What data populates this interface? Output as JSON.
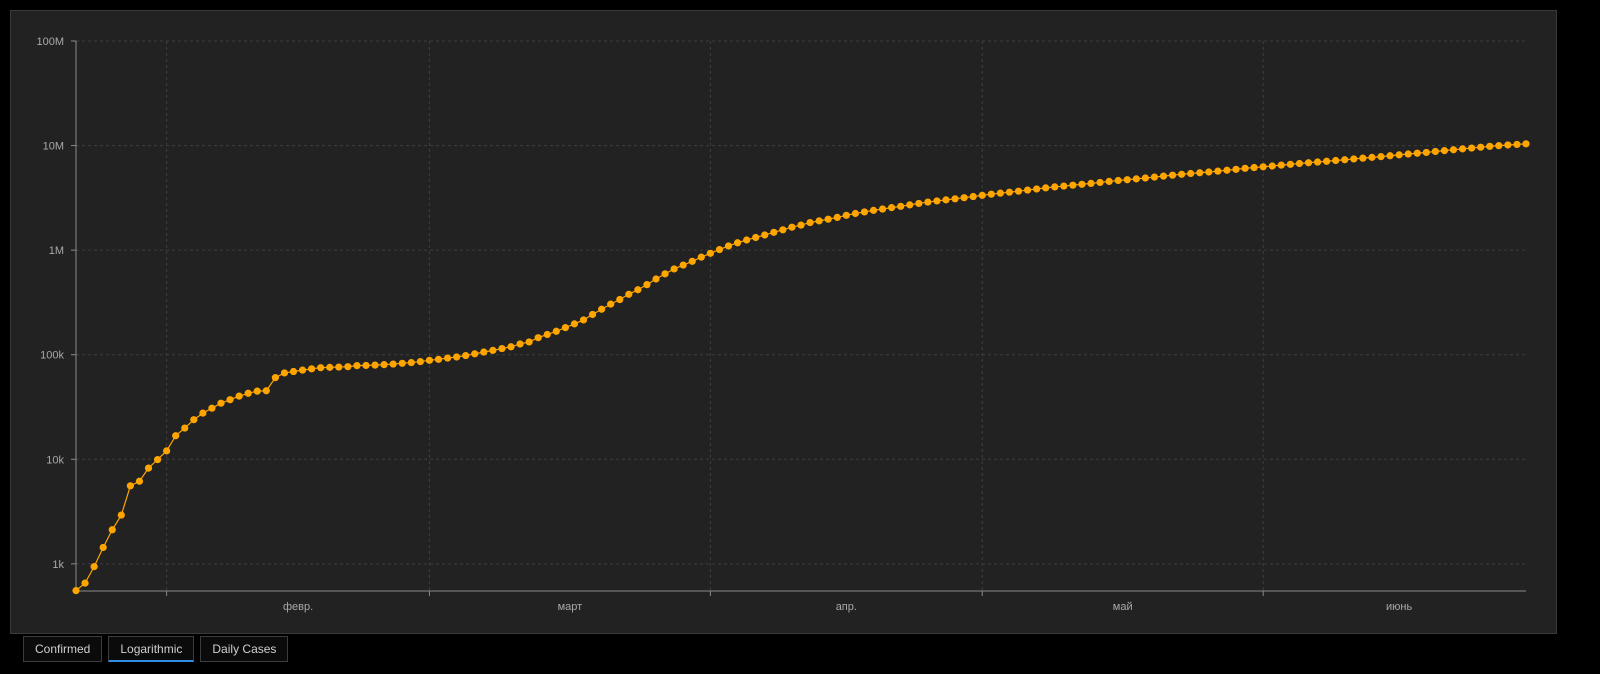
{
  "tabs": [
    {
      "label": "Confirmed",
      "active": false
    },
    {
      "label": "Logarithmic",
      "active": true
    },
    {
      "label": "Daily Cases",
      "active": false
    }
  ],
  "colors": {
    "background": "#000000",
    "panel": "#222222",
    "series": "#ffa500",
    "grid": "#3e3e3e",
    "axis": "#8a8a8a",
    "tab_active_underline": "#2f8fe0"
  },
  "chart_data": {
    "type": "line",
    "title": "",
    "xlabel": "",
    "ylabel": "",
    "y_scale": "log",
    "ylim": [
      550,
      100000000
    ],
    "y_ticks": [
      {
        "value": 1000,
        "label": "1k"
      },
      {
        "value": 10000,
        "label": "10k"
      },
      {
        "value": 100000,
        "label": "100k"
      },
      {
        "value": 1000000,
        "label": "1M"
      },
      {
        "value": 10000000,
        "label": "10M"
      },
      {
        "value": 100000000,
        "label": "100M"
      }
    ],
    "xlim": [
      "2020-01-22",
      "2020-06-30"
    ],
    "x_ticks": [
      {
        "value": "2020-02-01",
        "label": "февр."
      },
      {
        "value": "2020-03-01",
        "label": "март"
      },
      {
        "value": "2020-04-01",
        "label": "апр."
      },
      {
        "value": "2020-05-01",
        "label": "май"
      },
      {
        "value": "2020-06-01",
        "label": "июнь"
      }
    ],
    "x_major_lines": [
      "2020-02-01",
      "2020-03-01",
      "2020-04-01",
      "2020-05-01",
      "2020-06-01"
    ],
    "grid": true,
    "legend": "none",
    "series": [
      {
        "x": [
          "2020-01-22",
          "2020-01-23",
          "2020-01-24",
          "2020-01-25",
          "2020-01-26",
          "2020-01-27",
          "2020-01-28",
          "2020-01-29",
          "2020-01-30",
          "2020-01-31",
          "2020-02-01",
          "2020-02-02",
          "2020-02-03",
          "2020-02-04",
          "2020-02-05",
          "2020-02-06",
          "2020-02-07",
          "2020-02-08",
          "2020-02-09",
          "2020-02-10",
          "2020-02-11",
          "2020-02-12",
          "2020-02-13",
          "2020-02-14",
          "2020-02-15",
          "2020-02-16",
          "2020-02-17",
          "2020-02-18",
          "2020-02-19",
          "2020-02-20",
          "2020-02-21",
          "2020-02-22",
          "2020-02-23",
          "2020-02-24",
          "2020-02-25",
          "2020-02-26",
          "2020-02-27",
          "2020-02-28",
          "2020-02-29",
          "2020-03-01",
          "2020-03-02",
          "2020-03-03",
          "2020-03-04",
          "2020-03-05",
          "2020-03-06",
          "2020-03-07",
          "2020-03-08",
          "2020-03-09",
          "2020-03-10",
          "2020-03-11",
          "2020-03-12",
          "2020-03-13",
          "2020-03-14",
          "2020-03-15",
          "2020-03-16",
          "2020-03-17",
          "2020-03-18",
          "2020-03-19",
          "2020-03-20",
          "2020-03-21",
          "2020-03-22",
          "2020-03-23",
          "2020-03-24",
          "2020-03-25",
          "2020-03-26",
          "2020-03-27",
          "2020-03-28",
          "2020-03-29",
          "2020-03-30",
          "2020-03-31",
          "2020-04-01",
          "2020-04-02",
          "2020-04-03",
          "2020-04-04",
          "2020-04-05",
          "2020-04-06",
          "2020-04-07",
          "2020-04-08",
          "2020-04-09",
          "2020-04-10",
          "2020-04-11",
          "2020-04-12",
          "2020-04-13",
          "2020-04-14",
          "2020-04-15",
          "2020-04-16",
          "2020-04-17",
          "2020-04-18",
          "2020-04-19",
          "2020-04-20",
          "2020-04-21",
          "2020-04-22",
          "2020-04-23",
          "2020-04-24",
          "2020-04-25",
          "2020-04-26",
          "2020-04-27",
          "2020-04-28",
          "2020-04-29",
          "2020-04-30",
          "2020-05-01",
          "2020-05-02",
          "2020-05-03",
          "2020-05-04",
          "2020-05-05",
          "2020-05-06",
          "2020-05-07",
          "2020-05-08",
          "2020-05-09",
          "2020-05-10",
          "2020-05-11",
          "2020-05-12",
          "2020-05-13",
          "2020-05-14",
          "2020-05-15",
          "2020-05-16",
          "2020-05-17",
          "2020-05-18",
          "2020-05-19",
          "2020-05-20",
          "2020-05-21",
          "2020-05-22",
          "2020-05-23",
          "2020-05-24",
          "2020-05-25",
          "2020-05-26",
          "2020-05-27",
          "2020-05-28",
          "2020-05-29",
          "2020-05-30",
          "2020-05-31",
          "2020-06-01",
          "2020-06-02",
          "2020-06-03",
          "2020-06-04",
          "2020-06-05",
          "2020-06-06",
          "2020-06-07",
          "2020-06-08",
          "2020-06-09",
          "2020-06-10",
          "2020-06-11",
          "2020-06-12",
          "2020-06-13",
          "2020-06-14",
          "2020-06-15",
          "2020-06-16",
          "2020-06-17",
          "2020-06-18",
          "2020-06-19",
          "2020-06-20",
          "2020-06-21",
          "2020-06-22",
          "2020-06-23",
          "2020-06-24",
          "2020-06-25",
          "2020-06-26",
          "2020-06-27",
          "2020-06-28",
          "2020-06-29",
          "2020-06-30"
        ],
        "values": [
          555,
          654,
          941,
          1434,
          2118,
          2927,
          5578,
          6166,
          8234,
          9927,
          12038,
          16787,
          19887,
          23898,
          27643,
          30802,
          34395,
          37129,
          40160,
          42768,
          44811,
          45228,
          60381,
          66908,
          69052,
          71235,
          73270,
          75153,
          75653,
          76206,
          76842,
          78602,
          78982,
          79546,
          80400,
          81389,
          82746,
          84112,
          86011,
          88369,
          90306,
          92840,
          95120,
          98192,
          102050,
          106099,
          109991,
          114458,
          119110,
          126681,
          132523,
          145450,
          156088,
          167529,
          181546,
          197108,
          214972,
          242500,
          272166,
          304525,
          337020,
          378231,
          418041,
          467653,
          529591,
          593291,
          660706,
          720117,
          782365,
          857487,
          932605,
          1013157,
          1095917,
          1175857,
          1249754,
          1321481,
          1396476,
          1480202,
          1565278,
          1657526,
          1735650,
          1834721,
          1904838,
          1976191,
          2056054,
          2152437,
          2240190,
          2317759,
          2401379,
          2472259,
          2549294,
          2624074,
          2708885,
          2795729,
          2881140,
          2955033,
          3023722,
          3097229,
          3172287,
          3256846,
          3343777,
          3427343,
          3506729,
          3583055,
          3662691,
          3755341,
          3845718,
          3938064,
          4024009,
          4101699,
          4177502,
          4261747,
          4347018,
          4442163,
          4542347,
          4634068,
          4713620,
          4801943,
          4897492,
          4996472,
          5102424,
          5210817,
          5310362,
          5407613,
          5495061,
          5589626,
          5691790,
          5808946,
          5924275,
          6059017,
          6166946,
          6265852,
          6377166,
          6500000,
          6615000,
          6736000,
          6850000,
          6960000,
          7075000,
          7200000,
          7320000,
          7450000,
          7580000,
          7710000,
          7840000,
          7990000,
          8150000,
          8300000,
          8450000,
          8600000,
          8780000,
          8950000,
          9120000,
          9300000,
          9470000,
          9650000,
          9830000,
          9980000,
          10130000,
          10250000,
          10400000
        ]
      }
    ]
  }
}
